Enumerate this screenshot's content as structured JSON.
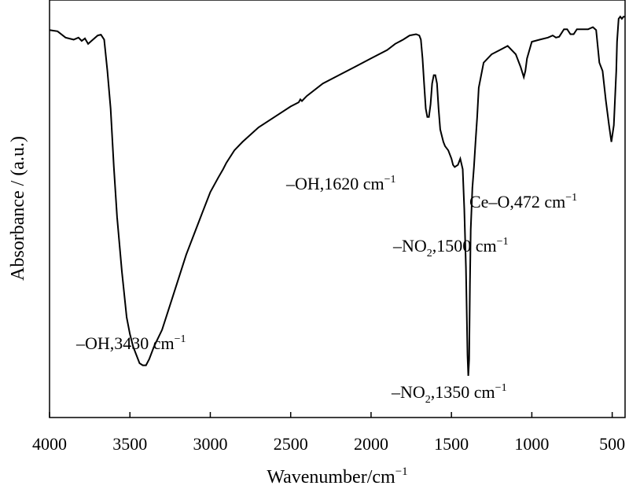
{
  "chart_data": {
    "type": "line",
    "title": "",
    "xlabel": "Wavenumber/cm",
    "xlabel_sup": "−1",
    "ylabel": "Absorbance / (a.u.)",
    "xlim": [
      4000,
      420
    ],
    "x_reversed": true,
    "ylim": [
      0,
      1
    ],
    "y_ticks_shown": false,
    "grid": false,
    "xticks": [
      4000,
      3500,
      3000,
      2500,
      2000,
      1500,
      1000,
      500
    ],
    "xtick_labels": [
      "4000",
      "3500",
      "3000",
      "2500",
      "2000",
      "1500",
      "1000",
      "500"
    ],
    "series": [
      {
        "name": "",
        "color": "#000000",
        "x": [
          4000,
          3950,
          3900,
          3850,
          3820,
          3800,
          3780,
          3760,
          3730,
          3700,
          3680,
          3660,
          3640,
          3620,
          3600,
          3580,
          3550,
          3520,
          3500,
          3480,
          3460,
          3440,
          3420,
          3400,
          3380,
          3350,
          3300,
          3250,
          3200,
          3150,
          3100,
          3050,
          3000,
          2950,
          2920,
          2900,
          2850,
          2800,
          2700,
          2600,
          2500,
          2450,
          2440,
          2430,
          2400,
          2300,
          2200,
          2100,
          2000,
          1900,
          1850,
          1800,
          1760,
          1720,
          1700,
          1690,
          1680,
          1670,
          1660,
          1650,
          1640,
          1630,
          1620,
          1610,
          1600,
          1590,
          1580,
          1570,
          1560,
          1550,
          1540,
          1520,
          1500,
          1490,
          1480,
          1460,
          1445,
          1430,
          1420,
          1410,
          1400,
          1395,
          1390,
          1385,
          1380,
          1370,
          1360,
          1350,
          1340,
          1330,
          1300,
          1250,
          1200,
          1150,
          1100,
          1070,
          1050,
          1040,
          1030,
          1000,
          950,
          900,
          870,
          850,
          830,
          800,
          780,
          760,
          740,
          720,
          700,
          650,
          620,
          600,
          580,
          560,
          540,
          520,
          505,
          490,
          475,
          470,
          460,
          450,
          440,
          430,
          420
        ],
        "y": [
          0.928,
          0.925,
          0.91,
          0.905,
          0.91,
          0.902,
          0.908,
          0.895,
          0.905,
          0.915,
          0.917,
          0.905,
          0.83,
          0.74,
          0.6,
          0.48,
          0.35,
          0.24,
          0.2,
          0.17,
          0.15,
          0.13,
          0.125,
          0.125,
          0.14,
          0.17,
          0.21,
          0.27,
          0.33,
          0.39,
          0.44,
          0.49,
          0.54,
          0.575,
          0.595,
          0.61,
          0.64,
          0.66,
          0.695,
          0.72,
          0.745,
          0.755,
          0.762,
          0.758,
          0.77,
          0.8,
          0.82,
          0.84,
          0.86,
          0.88,
          0.895,
          0.905,
          0.915,
          0.918,
          0.915,
          0.905,
          0.86,
          0.8,
          0.74,
          0.72,
          0.72,
          0.75,
          0.8,
          0.82,
          0.82,
          0.8,
          0.74,
          0.69,
          0.675,
          0.66,
          0.65,
          0.64,
          0.62,
          0.605,
          0.6,
          0.605,
          0.62,
          0.595,
          0.5,
          0.36,
          0.15,
          0.1,
          0.14,
          0.32,
          0.45,
          0.55,
          0.6,
          0.66,
          0.72,
          0.79,
          0.85,
          0.87,
          0.88,
          0.89,
          0.87,
          0.84,
          0.815,
          0.83,
          0.86,
          0.9,
          0.905,
          0.91,
          0.915,
          0.91,
          0.912,
          0.93,
          0.93,
          0.918,
          0.918,
          0.93,
          0.93,
          0.93,
          0.935,
          0.928,
          0.85,
          0.83,
          0.76,
          0.7,
          0.66,
          0.7,
          0.83,
          0.9,
          0.955,
          0.96,
          0.955,
          0.96,
          0.96
        ]
      }
    ],
    "annotations": [
      {
        "main": "–OH,3430 cm",
        "sup": "−1",
        "x": 3430
      },
      {
        "main": "–OH,1620 cm",
        "sup": "−1",
        "x": 1620
      },
      {
        "main": "Ce–O,472 cm",
        "sup": "−1",
        "x": 472
      },
      {
        "pre": "–NO",
        "sub": "2",
        "main": ",1500 cm",
        "sup": "−1",
        "x": 1500
      },
      {
        "pre": "–NO",
        "sub": "2",
        "main": ",1350 cm",
        "sup": "−1",
        "x": 1350
      }
    ]
  }
}
